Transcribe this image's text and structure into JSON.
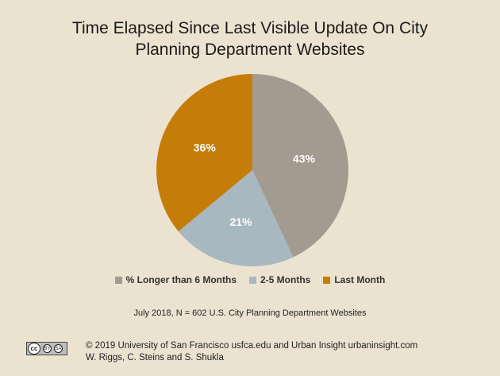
{
  "chart_data": {
    "type": "pie",
    "title_lines": [
      "Time Elapsed Since Last Visible Update On City",
      "Planning Department Websites"
    ],
    "slices": [
      {
        "label": "% Longer than 6 Months",
        "value": 43,
        "display": "43%",
        "color": "#a39b8f"
      },
      {
        "label": "2-5 Months",
        "value": 21,
        "display": "21%",
        "color": "#a7b8c0"
      },
      {
        "label": "Last Month",
        "value": 36,
        "display": "36%",
        "color": "#c57d0a"
      }
    ],
    "legend_position": "bottom"
  },
  "note": "July 2018, N = 602 U.S. City Planning Department Websites",
  "license_badge": {
    "icons": [
      "cc-icon",
      "by-icon",
      "sa-icon"
    ],
    "cc_text": "cc",
    "by_text": "BY",
    "sa_text": "SA"
  },
  "credits": {
    "line1": "© 2019 University of San Francisco usfca.edu and Urban Insight urbaninsight.com",
    "line2": "W. Riggs, C. Steins and S. Shukla"
  }
}
